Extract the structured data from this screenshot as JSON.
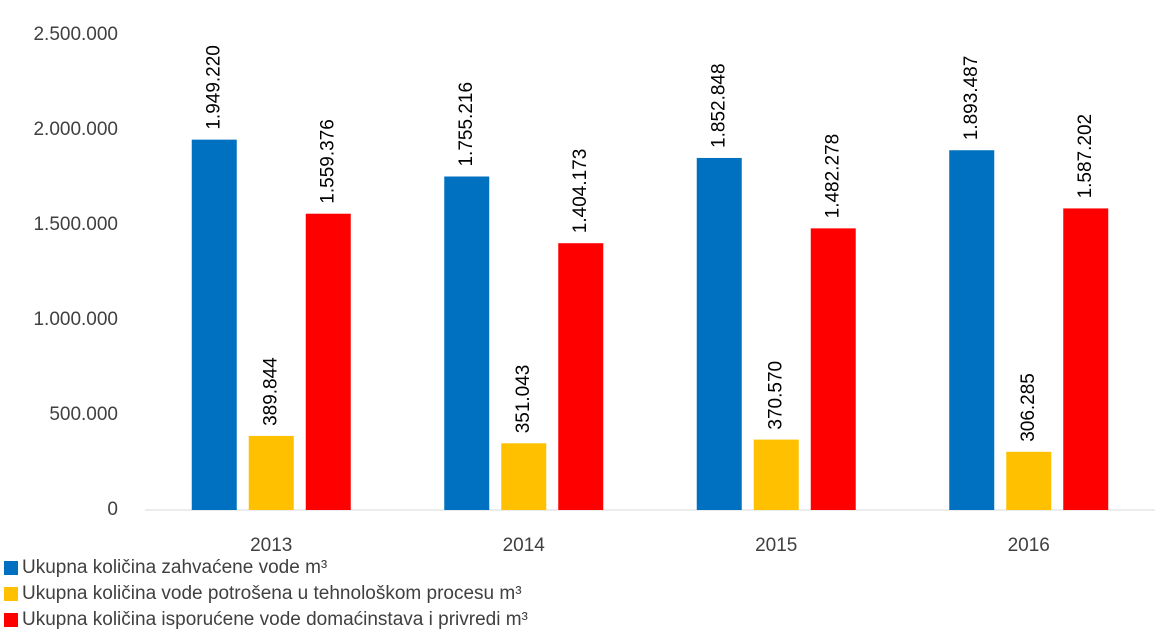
{
  "chart_data": {
    "type": "bar",
    "categories": [
      "2013",
      "2014",
      "2015",
      "2016"
    ],
    "series": [
      {
        "name": "Ukupna količina zahvaćene vode m³",
        "color": "#0070c0",
        "values": [
          1949220,
          1755216,
          1852848,
          1893487
        ],
        "value_labels": [
          "1.949.220",
          "1.755.216",
          "1.852.848",
          "1.893.487"
        ]
      },
      {
        "name": "Ukupna količina vode potrošena u tehnološkom procesu m³",
        "color": "#ffc000",
        "values": [
          389844,
          351043,
          370570,
          306285
        ],
        "value_labels": [
          "389.844",
          "351.043",
          "370.570",
          "306.285"
        ]
      },
      {
        "name": "Ukupna količina isporućene vode domaćinstava i privredi m³",
        "color": "#ff0000",
        "values": [
          1559376,
          1404173,
          1482278,
          1587202
        ],
        "value_labels": [
          "1.559.376",
          "1.404.173",
          "1.482.278",
          "1.587.202"
        ]
      }
    ],
    "ylim": [
      0,
      2500000
    ],
    "yticks": [
      0,
      {
        "value": 500000,
        "label": "500.000"
      },
      {
        "value": 1000000,
        "label": "1.000.000"
      },
      {
        "value": 1500000,
        "label": "1.500.000"
      },
      {
        "value": 2000000,
        "label": "2.000.000"
      },
      {
        "value": 2500000,
        "label": "2.500.000"
      }
    ],
    "grid": false,
    "legend": "bottom"
  }
}
